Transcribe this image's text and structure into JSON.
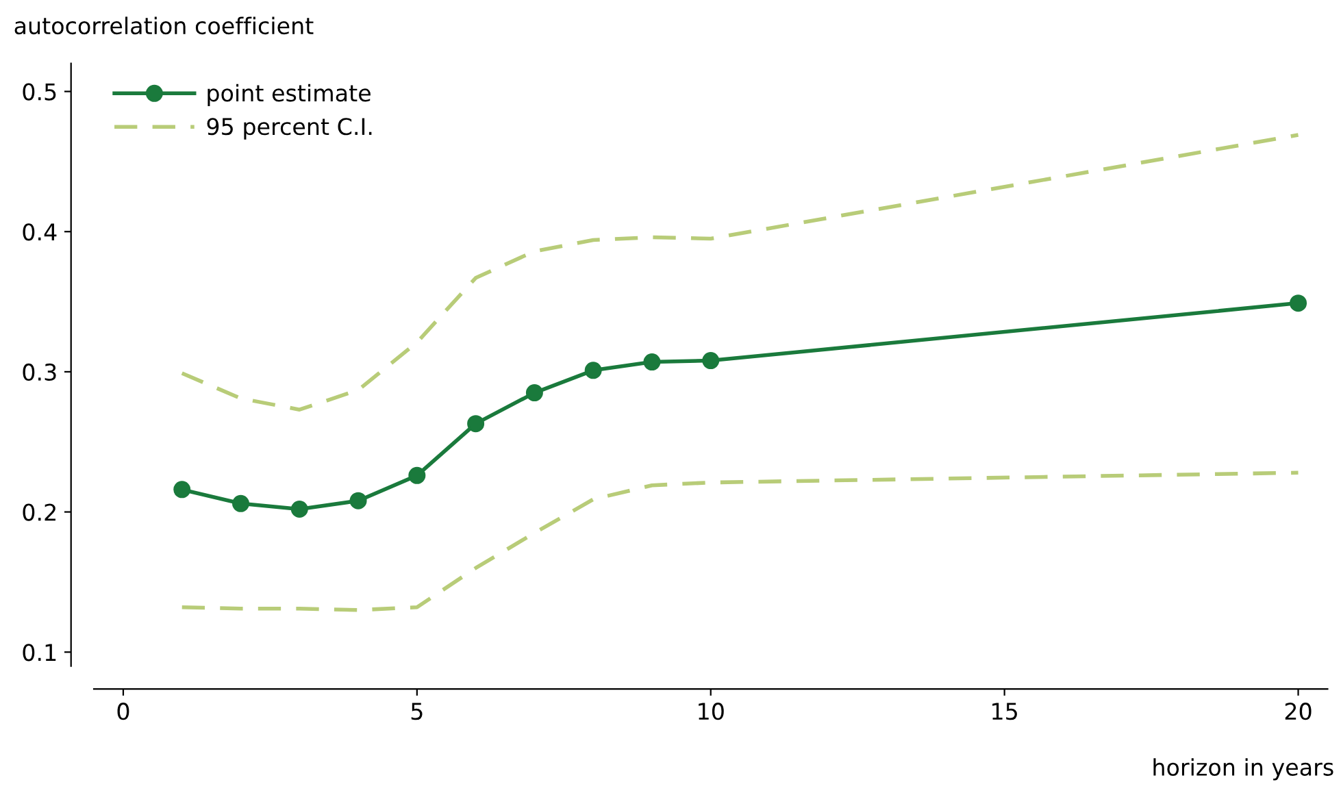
{
  "chart_data": {
    "type": "line",
    "ylabel": "autocorrelation coefficient",
    "xlabel": "horizon in years",
    "xlim": [
      -0.5,
      20.5
    ],
    "xticks": [
      0,
      5,
      10,
      15,
      20
    ],
    "ylim": [
      0.09,
      0.52
    ],
    "yticks": [
      0.1,
      0.2,
      0.3,
      0.4,
      0.5
    ],
    "x": [
      1,
      2,
      3,
      4,
      5,
      6,
      7,
      8,
      9,
      10,
      20
    ],
    "grid": false,
    "legend": "top left",
    "series": [
      {
        "name": "point estimate",
        "color": "#1a7a3c",
        "marker": "circle",
        "line_style": "solid",
        "values": [
          0.216,
          0.206,
          0.202,
          0.208,
          0.226,
          0.263,
          0.285,
          0.301,
          0.307,
          0.308,
          0.349
        ]
      },
      {
        "name": "95 percent C.I.",
        "color": "#b8cc78",
        "marker": "none",
        "line_style": "dashed",
        "values": [
          0.299,
          0.281,
          0.273,
          0.287,
          0.321,
          0.367,
          0.386,
          0.394,
          0.396,
          0.395,
          0.469
        ]
      },
      {
        "color": "#b8cc78",
        "marker": "none",
        "line_style": "dashed",
        "values": [
          0.132,
          0.131,
          0.131,
          0.13,
          0.132,
          0.16,
          0.185,
          0.209,
          0.219,
          0.221,
          0.228
        ]
      }
    ]
  }
}
